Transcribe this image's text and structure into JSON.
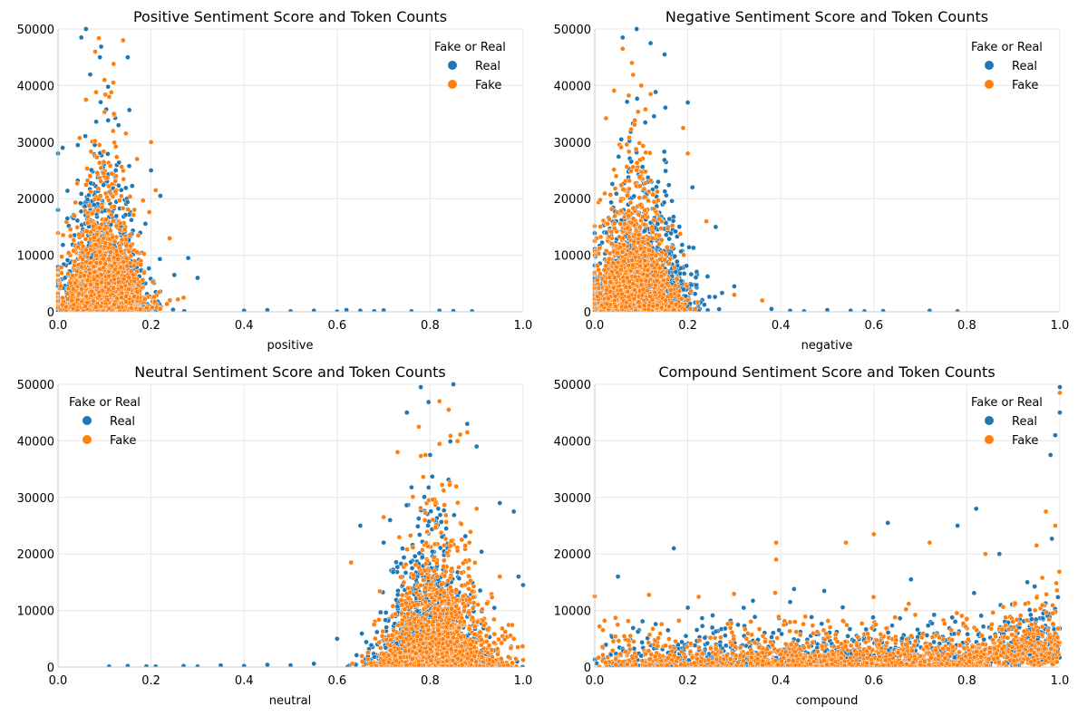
{
  "colors": {
    "real": "#1f77b4",
    "fake": "#ff7f0e"
  },
  "chart_data": [
    {
      "type": "scatter",
      "title": "Positive Sentiment Score and Token Counts",
      "xlabel": "positive",
      "ylabel": "",
      "xlim": [
        0.0,
        1.0
      ],
      "ylim": [
        0,
        50000
      ],
      "xticks": [
        "0.0",
        "0.2",
        "0.4",
        "0.6",
        "0.8",
        "1.0"
      ],
      "yticks": [
        "0",
        "10000",
        "20000",
        "30000",
        "40000",
        "50000"
      ],
      "grid": true,
      "legend": {
        "title": "Fake or Real",
        "position": "top-right",
        "entries": [
          "Real",
          "Fake"
        ]
      },
      "series": [
        {
          "name": "Real",
          "center": 0.1,
          "spread": 0.06,
          "points": [
            [
              0.0,
              28000
            ],
            [
              0.01,
              29000
            ],
            [
              0.0,
              18000
            ],
            [
              0.02,
              16500
            ],
            [
              0.05,
              48500
            ],
            [
              0.06,
              50000
            ],
            [
              0.09,
              45000
            ],
            [
              0.15,
              45000
            ],
            [
              0.13,
              33000
            ],
            [
              0.2,
              25000
            ],
            [
              0.22,
              20500
            ],
            [
              0.25,
              6500
            ],
            [
              0.28,
              9500
            ],
            [
              0.3,
              6000
            ],
            [
              0.4,
              200
            ],
            [
              0.45,
              300
            ],
            [
              0.5,
              100
            ],
            [
              0.55,
              200
            ],
            [
              0.6,
              50
            ],
            [
              0.62,
              300
            ],
            [
              0.65,
              200
            ],
            [
              0.68,
              100
            ],
            [
              0.7,
              250
            ],
            [
              0.76,
              100
            ],
            [
              0.82,
              200
            ],
            [
              0.85,
              150
            ],
            [
              0.89,
              100
            ]
          ]
        },
        {
          "name": "Fake",
          "center": 0.1,
          "spread": 0.055,
          "points": [
            [
              0.06,
              37500
            ],
            [
              0.08,
              46000
            ],
            [
              0.1,
              41000
            ],
            [
              0.11,
              38000
            ],
            [
              0.12,
              35000
            ],
            [
              0.14,
              48000
            ],
            [
              0.17,
              27000
            ],
            [
              0.2,
              30000
            ],
            [
              0.21,
              21500
            ],
            [
              0.24,
              13000
            ],
            [
              0.27,
              2500
            ]
          ]
        }
      ]
    },
    {
      "type": "scatter",
      "title": "Negative Sentiment Score and Token Counts",
      "xlabel": "negative",
      "ylabel": "",
      "xlim": [
        0.0,
        1.0
      ],
      "ylim": [
        0,
        50000
      ],
      "xticks": [
        "0.0",
        "0.2",
        "0.4",
        "0.6",
        "0.8",
        "1.0"
      ],
      "yticks": [
        "0",
        "10000",
        "20000",
        "30000",
        "40000",
        "50000"
      ],
      "grid": true,
      "legend": {
        "title": "Fake or Real",
        "position": "top-right",
        "entries": [
          "Real",
          "Fake"
        ]
      },
      "series": [
        {
          "name": "Real",
          "center": 0.1,
          "spread": 0.07,
          "points": [
            [
              0.06,
              48500
            ],
            [
              0.09,
              50000
            ],
            [
              0.12,
              47500
            ],
            [
              0.15,
              45500
            ],
            [
              0.2,
              37000
            ],
            [
              0.21,
              22000
            ],
            [
              0.26,
              15000
            ],
            [
              0.3,
              4500
            ],
            [
              0.38,
              500
            ],
            [
              0.42,
              200
            ],
            [
              0.45,
              100
            ],
            [
              0.5,
              300
            ],
            [
              0.55,
              200
            ],
            [
              0.58,
              100
            ],
            [
              0.62,
              150
            ],
            [
              0.72,
              200
            ],
            [
              0.78,
              100
            ]
          ]
        },
        {
          "name": "Fake",
          "center": 0.08,
          "spread": 0.06,
          "points": [
            [
              0.06,
              46500
            ],
            [
              0.08,
              44000
            ],
            [
              0.1,
              40000
            ],
            [
              0.12,
              38500
            ],
            [
              0.19,
              32500
            ],
            [
              0.2,
              28000
            ],
            [
              0.24,
              16000
            ],
            [
              0.3,
              3000
            ],
            [
              0.36,
              2000
            ]
          ]
        }
      ]
    },
    {
      "type": "scatter",
      "title": "Neutral Sentiment Score and Token Counts",
      "xlabel": "neutral",
      "ylabel": "",
      "xlim": [
        0.0,
        1.0
      ],
      "ylim": [
        0,
        50000
      ],
      "xticks": [
        "0.0",
        "0.2",
        "0.4",
        "0.6",
        "0.8",
        "1.0"
      ],
      "yticks": [
        "0",
        "10000",
        "20000",
        "30000",
        "40000",
        "50000"
      ],
      "grid": true,
      "legend": {
        "title": "Fake or Real",
        "position": "top-left",
        "entries": [
          "Real",
          "Fake"
        ]
      },
      "series": [
        {
          "name": "Real",
          "center": 0.8,
          "spread": 0.07,
          "points": [
            [
              0.11,
              100
            ],
            [
              0.15,
              200
            ],
            [
              0.19,
              150
            ],
            [
              0.21,
              100
            ],
            [
              0.27,
              200
            ],
            [
              0.3,
              100
            ],
            [
              0.35,
              300
            ],
            [
              0.4,
              200
            ],
            [
              0.45,
              400
            ],
            [
              0.5,
              300
            ],
            [
              0.55,
              600
            ],
            [
              0.6,
              5000
            ],
            [
              0.65,
              25000
            ],
            [
              0.7,
              22000
            ],
            [
              0.75,
              45000
            ],
            [
              0.78,
              49500
            ],
            [
              0.8,
              37500
            ],
            [
              0.85,
              50000
            ],
            [
              0.88,
              43000
            ],
            [
              0.9,
              39000
            ],
            [
              0.95,
              29000
            ],
            [
              0.98,
              27500
            ],
            [
              1.0,
              14500
            ],
            [
              0.99,
              16000
            ]
          ]
        },
        {
          "name": "Fake",
          "center": 0.82,
          "spread": 0.08,
          "points": [
            [
              0.63,
              18500
            ],
            [
              0.7,
              26500
            ],
            [
              0.73,
              38000
            ],
            [
              0.79,
              37500
            ],
            [
              0.82,
              47000
            ],
            [
              0.84,
              45500
            ],
            [
              0.88,
              41500
            ],
            [
              0.9,
              28000
            ],
            [
              0.95,
              16000
            ],
            [
              0.98,
              5000
            ]
          ]
        }
      ]
    },
    {
      "type": "scatter",
      "title": "Compound Sentiment Score and Token Counts",
      "xlabel": "compound",
      "ylabel": "",
      "xlim": [
        0.0,
        1.0
      ],
      "ylim": [
        0,
        50000
      ],
      "xticks": [
        "0.0",
        "0.2",
        "0.4",
        "0.6",
        "0.8",
        "1.0"
      ],
      "yticks": [
        "0",
        "10000",
        "20000",
        "30000",
        "40000",
        "50000"
      ],
      "grid": true,
      "legend": {
        "title": "Fake or Real",
        "position": "top-right",
        "entries": [
          "Real",
          "Fake"
        ]
      },
      "series": [
        {
          "name": "Real",
          "center": 0.5,
          "spread": 0.5,
          "points": [
            [
              0.05,
              16000
            ],
            [
              0.17,
              21000
            ],
            [
              0.2,
              10500
            ],
            [
              0.42,
              11500
            ],
            [
              0.63,
              25500
            ],
            [
              0.68,
              15500
            ],
            [
              0.78,
              25000
            ],
            [
              0.82,
              28000
            ],
            [
              0.87,
              20000
            ],
            [
              0.93,
              15000
            ],
            [
              0.98,
              37500
            ],
            [
              1.0,
              45000
            ],
            [
              1.0,
              49500
            ],
            [
              0.99,
              41000
            ]
          ]
        },
        {
          "name": "Fake",
          "center": 0.5,
          "spread": 0.5,
          "points": [
            [
              0.39,
              22000
            ],
            [
              0.39,
              19000
            ],
            [
              0.54,
              22000
            ],
            [
              0.6,
              23500
            ],
            [
              0.72,
              22000
            ],
            [
              0.84,
              20000
            ],
            [
              0.95,
              21500
            ],
            [
              0.97,
              27500
            ],
            [
              0.99,
              25000
            ],
            [
              1.0,
              48500
            ],
            [
              0.0,
              12500
            ]
          ]
        }
      ]
    }
  ]
}
